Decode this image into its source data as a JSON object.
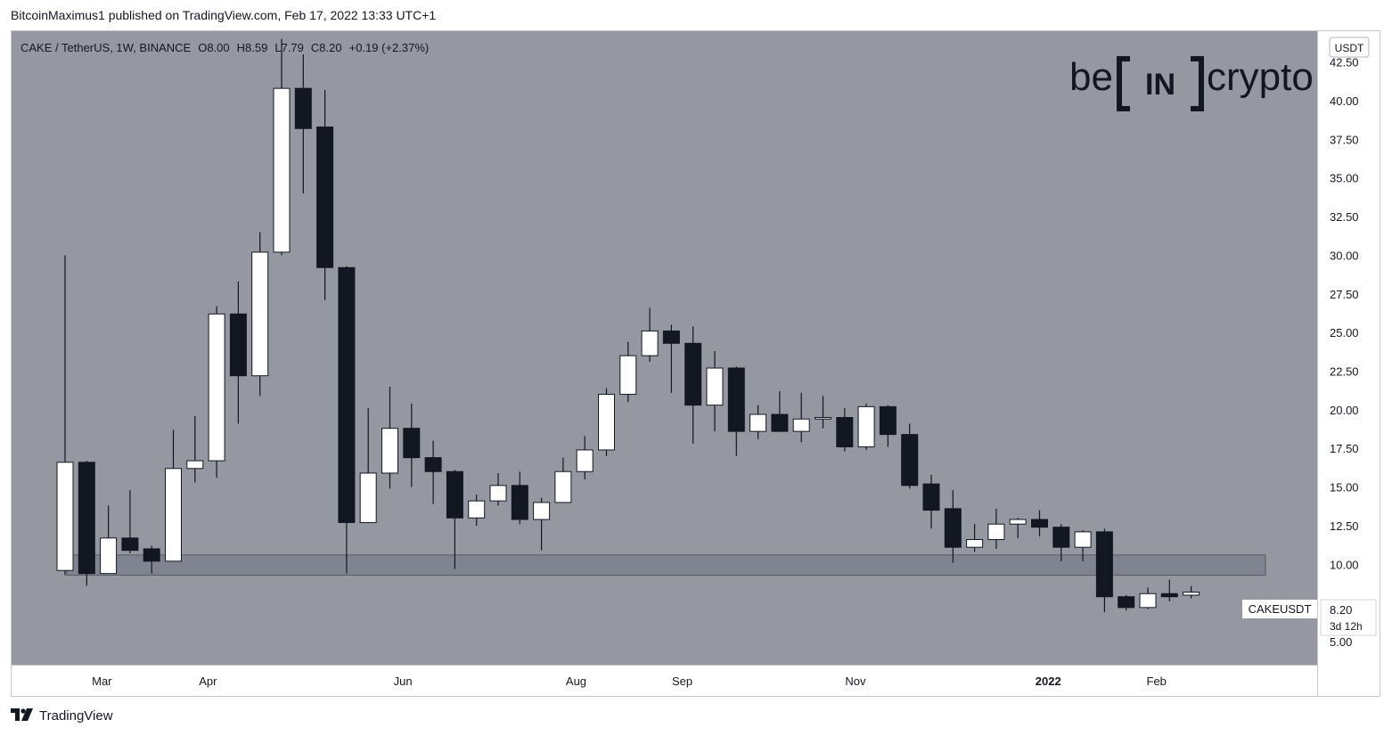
{
  "publisher": "BitcoinMaximus1 published on TradingView.com, Feb 17, 2022 13:33 UTC+1",
  "footer": {
    "logo_icon": "tradingview-logo-icon",
    "text": "TradingView"
  },
  "brand_watermark": {
    "left": "be",
    "center": "IN",
    "right": "crypto"
  },
  "colors": {
    "background": "#9598a1",
    "up_body": "#ffffff",
    "down_body": "#131722",
    "wick": "#131722",
    "zone": "#808390",
    "axis_bg": "#ffffff"
  },
  "header": {
    "symbol": "CAKE / TetherUS, 1W, BINANCE",
    "ohlc": [
      {
        "k": "O",
        "v": "8.00"
      },
      {
        "k": "H",
        "v": "8.59"
      },
      {
        "k": "L",
        "v": "7.79"
      },
      {
        "k": "C",
        "v": "8.20"
      }
    ],
    "change": "+0.19 (+2.37%)"
  },
  "price_axis": {
    "currency": "USDT",
    "ticks": [
      "42.50",
      "40.00",
      "37.50",
      "35.00",
      "32.50",
      "30.00",
      "27.50",
      "25.00",
      "22.50",
      "20.00",
      "17.50",
      "15.00",
      "12.50",
      "10.00",
      "5.00"
    ]
  },
  "time_axis": [
    {
      "label": "Mar",
      "bold": false,
      "week": 1.7
    },
    {
      "label": "Apr",
      "bold": false,
      "week": 6.6
    },
    {
      "label": "Jun",
      "bold": false,
      "week": 15.6
    },
    {
      "label": "Aug",
      "bold": false,
      "week": 23.6
    },
    {
      "label": "Sep",
      "bold": false,
      "week": 28.5
    },
    {
      "label": "Nov",
      "bold": false,
      "week": 36.5
    },
    {
      "label": "2022",
      "bold": true,
      "week": 45.4
    },
    {
      "label": "Feb",
      "bold": false,
      "week": 50.4
    }
  ],
  "last_price": {
    "symbol": "CAKEUSDT",
    "price": "8.20",
    "countdown": "3d 12h"
  },
  "chart_data": {
    "type": "candlestick",
    "title": "CAKE / TetherUS, 1W, BINANCE",
    "interval": "1W",
    "y_range": [
      3.5,
      44.5
    ],
    "support_zone": [
      9.3,
      10.6
    ],
    "grid": false,
    "candles": [
      {
        "o": 9.6,
        "h": 30.0,
        "l": 9.3,
        "c": 16.6
      },
      {
        "o": 16.6,
        "h": 16.7,
        "l": 8.6,
        "c": 9.4
      },
      {
        "o": 9.4,
        "h": 13.8,
        "l": 9.4,
        "c": 11.7
      },
      {
        "o": 11.7,
        "h": 14.8,
        "l": 10.7,
        "c": 10.9
      },
      {
        "o": 11.0,
        "h": 11.2,
        "l": 9.4,
        "c": 10.2
      },
      {
        "o": 10.2,
        "h": 18.7,
        "l": 10.2,
        "c": 16.2
      },
      {
        "o": 16.2,
        "h": 19.6,
        "l": 15.3,
        "c": 16.7
      },
      {
        "o": 16.7,
        "h": 26.7,
        "l": 15.6,
        "c": 26.2
      },
      {
        "o": 26.2,
        "h": 28.3,
        "l": 19.1,
        "c": 22.2
      },
      {
        "o": 22.2,
        "h": 31.5,
        "l": 20.9,
        "c": 30.2
      },
      {
        "o": 30.2,
        "h": 44.0,
        "l": 30.0,
        "c": 40.8
      },
      {
        "o": 40.8,
        "h": 43.0,
        "l": 34.0,
        "c": 38.2
      },
      {
        "o": 38.3,
        "h": 40.7,
        "l": 27.1,
        "c": 29.2
      },
      {
        "o": 29.2,
        "h": 29.3,
        "l": 9.4,
        "c": 12.7
      },
      {
        "o": 12.7,
        "h": 20.1,
        "l": 12.7,
        "c": 15.9
      },
      {
        "o": 15.9,
        "h": 21.5,
        "l": 14.9,
        "c": 18.8
      },
      {
        "o": 18.8,
        "h": 20.4,
        "l": 15.0,
        "c": 16.9
      },
      {
        "o": 16.9,
        "h": 18.0,
        "l": 13.9,
        "c": 16.0
      },
      {
        "o": 16.0,
        "h": 16.1,
        "l": 9.7,
        "c": 13.0
      },
      {
        "o": 13.0,
        "h": 14.5,
        "l": 12.5,
        "c": 14.1
      },
      {
        "o": 14.1,
        "h": 15.9,
        "l": 13.8,
        "c": 15.1
      },
      {
        "o": 15.1,
        "h": 16.0,
        "l": 12.6,
        "c": 12.9
      },
      {
        "o": 12.9,
        "h": 14.3,
        "l": 10.9,
        "c": 14.0
      },
      {
        "o": 14.0,
        "h": 16.9,
        "l": 14.0,
        "c": 16.0
      },
      {
        "o": 16.0,
        "h": 18.3,
        "l": 15.5,
        "c": 17.4
      },
      {
        "o": 17.4,
        "h": 21.4,
        "l": 17.0,
        "c": 21.0
      },
      {
        "o": 21.0,
        "h": 24.4,
        "l": 20.5,
        "c": 23.5
      },
      {
        "o": 23.5,
        "h": 26.6,
        "l": 23.1,
        "c": 25.1
      },
      {
        "o": 25.1,
        "h": 25.5,
        "l": 21.1,
        "c": 24.3
      },
      {
        "o": 24.3,
        "h": 25.4,
        "l": 17.8,
        "c": 20.3
      },
      {
        "o": 20.3,
        "h": 23.8,
        "l": 18.6,
        "c": 22.7
      },
      {
        "o": 22.7,
        "h": 22.8,
        "l": 17.0,
        "c": 18.6
      },
      {
        "o": 18.6,
        "h": 20.3,
        "l": 18.1,
        "c": 19.7
      },
      {
        "o": 19.7,
        "h": 21.2,
        "l": 18.6,
        "c": 18.6
      },
      {
        "o": 18.6,
        "h": 21.1,
        "l": 17.9,
        "c": 19.4
      },
      {
        "o": 19.4,
        "h": 20.9,
        "l": 18.8,
        "c": 19.5
      },
      {
        "o": 19.5,
        "h": 20.1,
        "l": 17.3,
        "c": 17.6
      },
      {
        "o": 17.6,
        "h": 20.4,
        "l": 17.4,
        "c": 20.2
      },
      {
        "o": 20.2,
        "h": 20.3,
        "l": 17.6,
        "c": 18.4
      },
      {
        "o": 18.4,
        "h": 19.1,
        "l": 14.9,
        "c": 15.1
      },
      {
        "o": 15.2,
        "h": 15.8,
        "l": 12.3,
        "c": 13.5
      },
      {
        "o": 13.6,
        "h": 14.8,
        "l": 10.1,
        "c": 11.1
      },
      {
        "o": 11.1,
        "h": 12.6,
        "l": 10.8,
        "c": 11.6
      },
      {
        "o": 11.6,
        "h": 13.6,
        "l": 11.0,
        "c": 12.6
      },
      {
        "o": 12.6,
        "h": 13.0,
        "l": 11.7,
        "c": 12.9
      },
      {
        "o": 12.9,
        "h": 13.5,
        "l": 11.8,
        "c": 12.4
      },
      {
        "o": 12.4,
        "h": 12.6,
        "l": 10.2,
        "c": 11.1
      },
      {
        "o": 11.1,
        "h": 12.2,
        "l": 10.2,
        "c": 12.1
      },
      {
        "o": 12.1,
        "h": 12.3,
        "l": 6.9,
        "c": 7.9
      },
      {
        "o": 7.9,
        "h": 8.0,
        "l": 7.0,
        "c": 7.2
      },
      {
        "o": 7.2,
        "h": 8.5,
        "l": 7.1,
        "c": 8.1
      },
      {
        "o": 8.1,
        "h": 9.0,
        "l": 7.6,
        "c": 7.9
      },
      {
        "o": 8.0,
        "h": 8.59,
        "l": 7.79,
        "c": 8.2
      }
    ]
  }
}
